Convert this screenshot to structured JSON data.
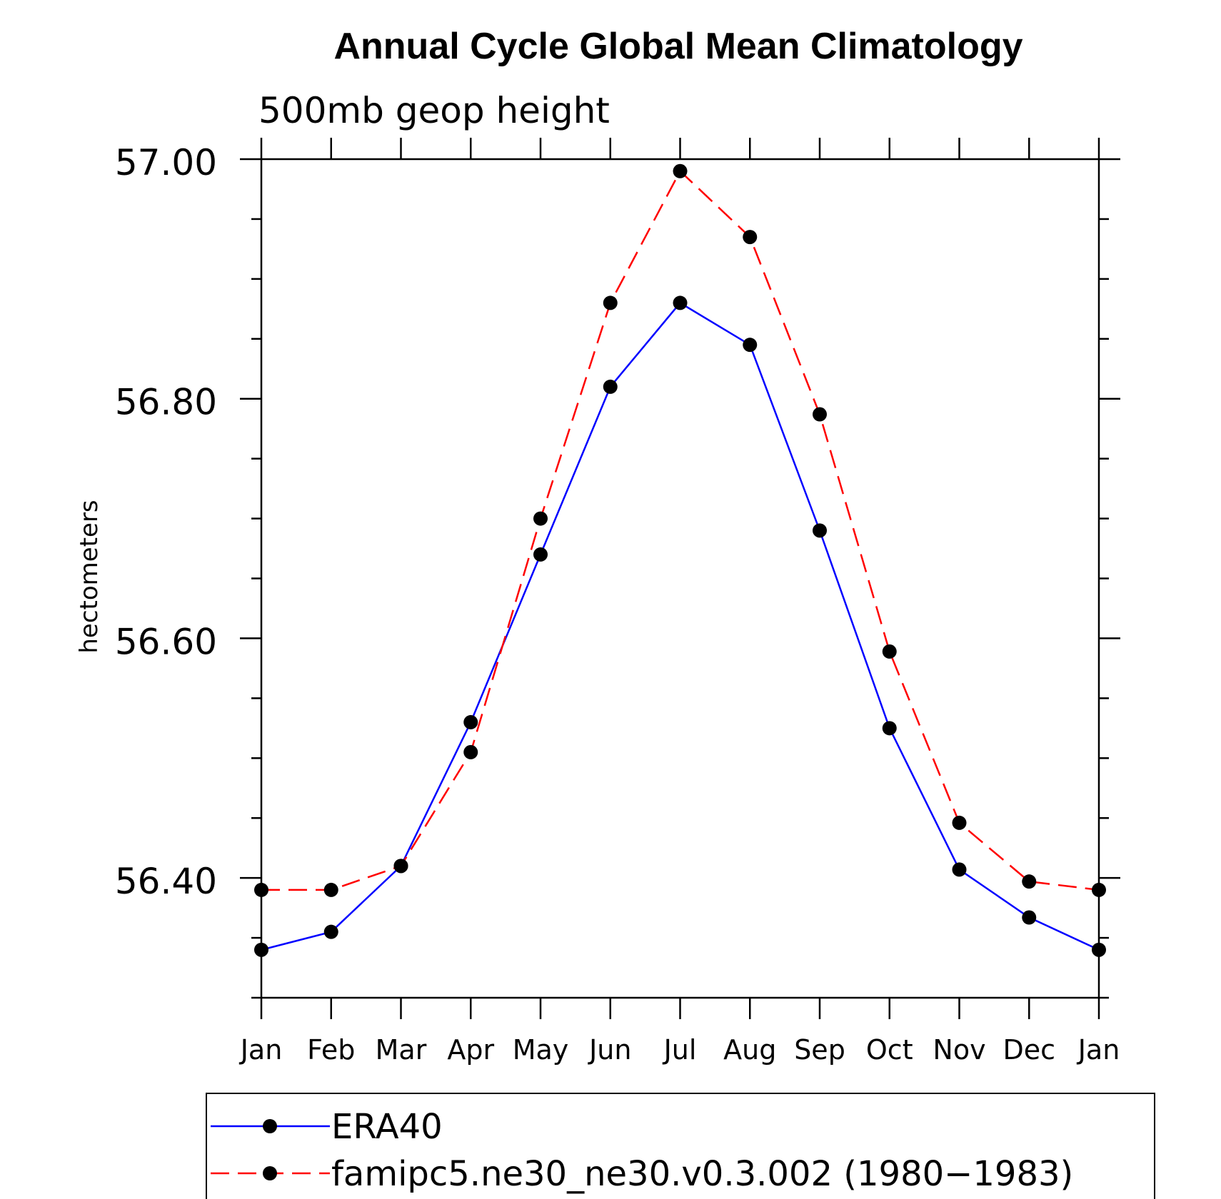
{
  "chart_data": {
    "type": "line",
    "title": "Annual Cycle Global Mean Climatology",
    "subtitle": "500mb geop height",
    "xlabel": "",
    "ylabel": "hectometers",
    "categories": [
      "Jan",
      "Feb",
      "Mar",
      "Apr",
      "May",
      "Jun",
      "Jul",
      "Aug",
      "Sep",
      "Oct",
      "Nov",
      "Dec",
      "Jan"
    ],
    "ylim": [
      56.3,
      57.0
    ],
    "yticks": [
      "56.40",
      "56.60",
      "56.80",
      "57.00"
    ],
    "grid": false,
    "legend_position": "bottom",
    "series": [
      {
        "name": "ERA40",
        "color": "#0000ff",
        "dash": "solid",
        "marker": "filled-circle",
        "values": [
          56.34,
          56.355,
          56.41,
          56.53,
          56.67,
          56.81,
          56.88,
          56.845,
          56.69,
          56.525,
          56.407,
          56.367,
          56.34
        ]
      },
      {
        "name": "famipc5.ne30_ne30.v0.3.002 (1980−1983)",
        "color": "#ff0000",
        "dash": "dashed",
        "marker": "filled-circle",
        "values": [
          56.39,
          56.39,
          56.41,
          56.505,
          56.7,
          56.88,
          56.99,
          56.935,
          56.787,
          56.589,
          56.446,
          56.397,
          56.39
        ]
      }
    ]
  }
}
